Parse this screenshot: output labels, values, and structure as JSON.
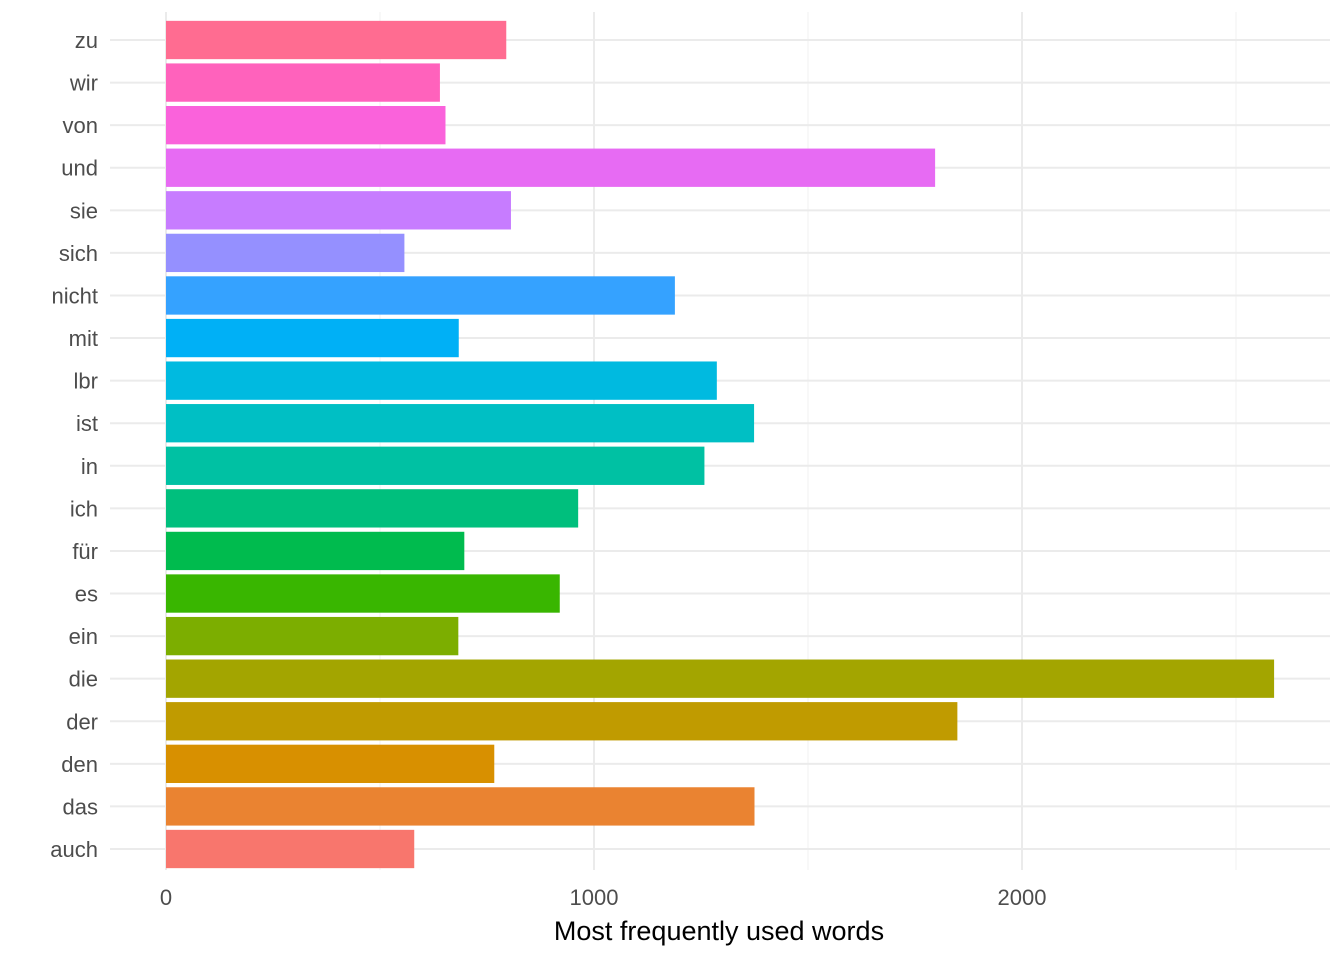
{
  "chart_data": {
    "type": "bar",
    "orientation": "horizontal",
    "xlabel": "Most frequently used words",
    "ylabel": "",
    "xlim": [
      0,
      2700
    ],
    "x_ticks": [
      0,
      1000,
      2000
    ],
    "grid": true,
    "legend": "none",
    "categories": [
      "auch",
      "das",
      "den",
      "der",
      "die",
      "ein",
      "es",
      "für",
      "ich",
      "in",
      "ist",
      "lbr",
      "mit",
      "nicht",
      "sich",
      "sie",
      "und",
      "von",
      "wir",
      "zu"
    ],
    "values": [
      580,
      1375,
      767,
      1849,
      2589,
      683,
      920,
      697,
      963,
      1258,
      1374,
      1287,
      684,
      1189,
      557,
      806,
      1797,
      653,
      640,
      795
    ],
    "colors": [
      "#F8766D",
      "#EA8331",
      "#D89000",
      "#C09B00",
      "#A3A500",
      "#7CAE00",
      "#39B600",
      "#00BB4E",
      "#00BF7D",
      "#00C1A3",
      "#00BFC4",
      "#00BAE0",
      "#00B0F6",
      "#35A2FF",
      "#9590FF",
      "#C77CFF",
      "#E76BF3",
      "#FA62DB",
      "#FF62BC",
      "#FF6C91"
    ]
  }
}
